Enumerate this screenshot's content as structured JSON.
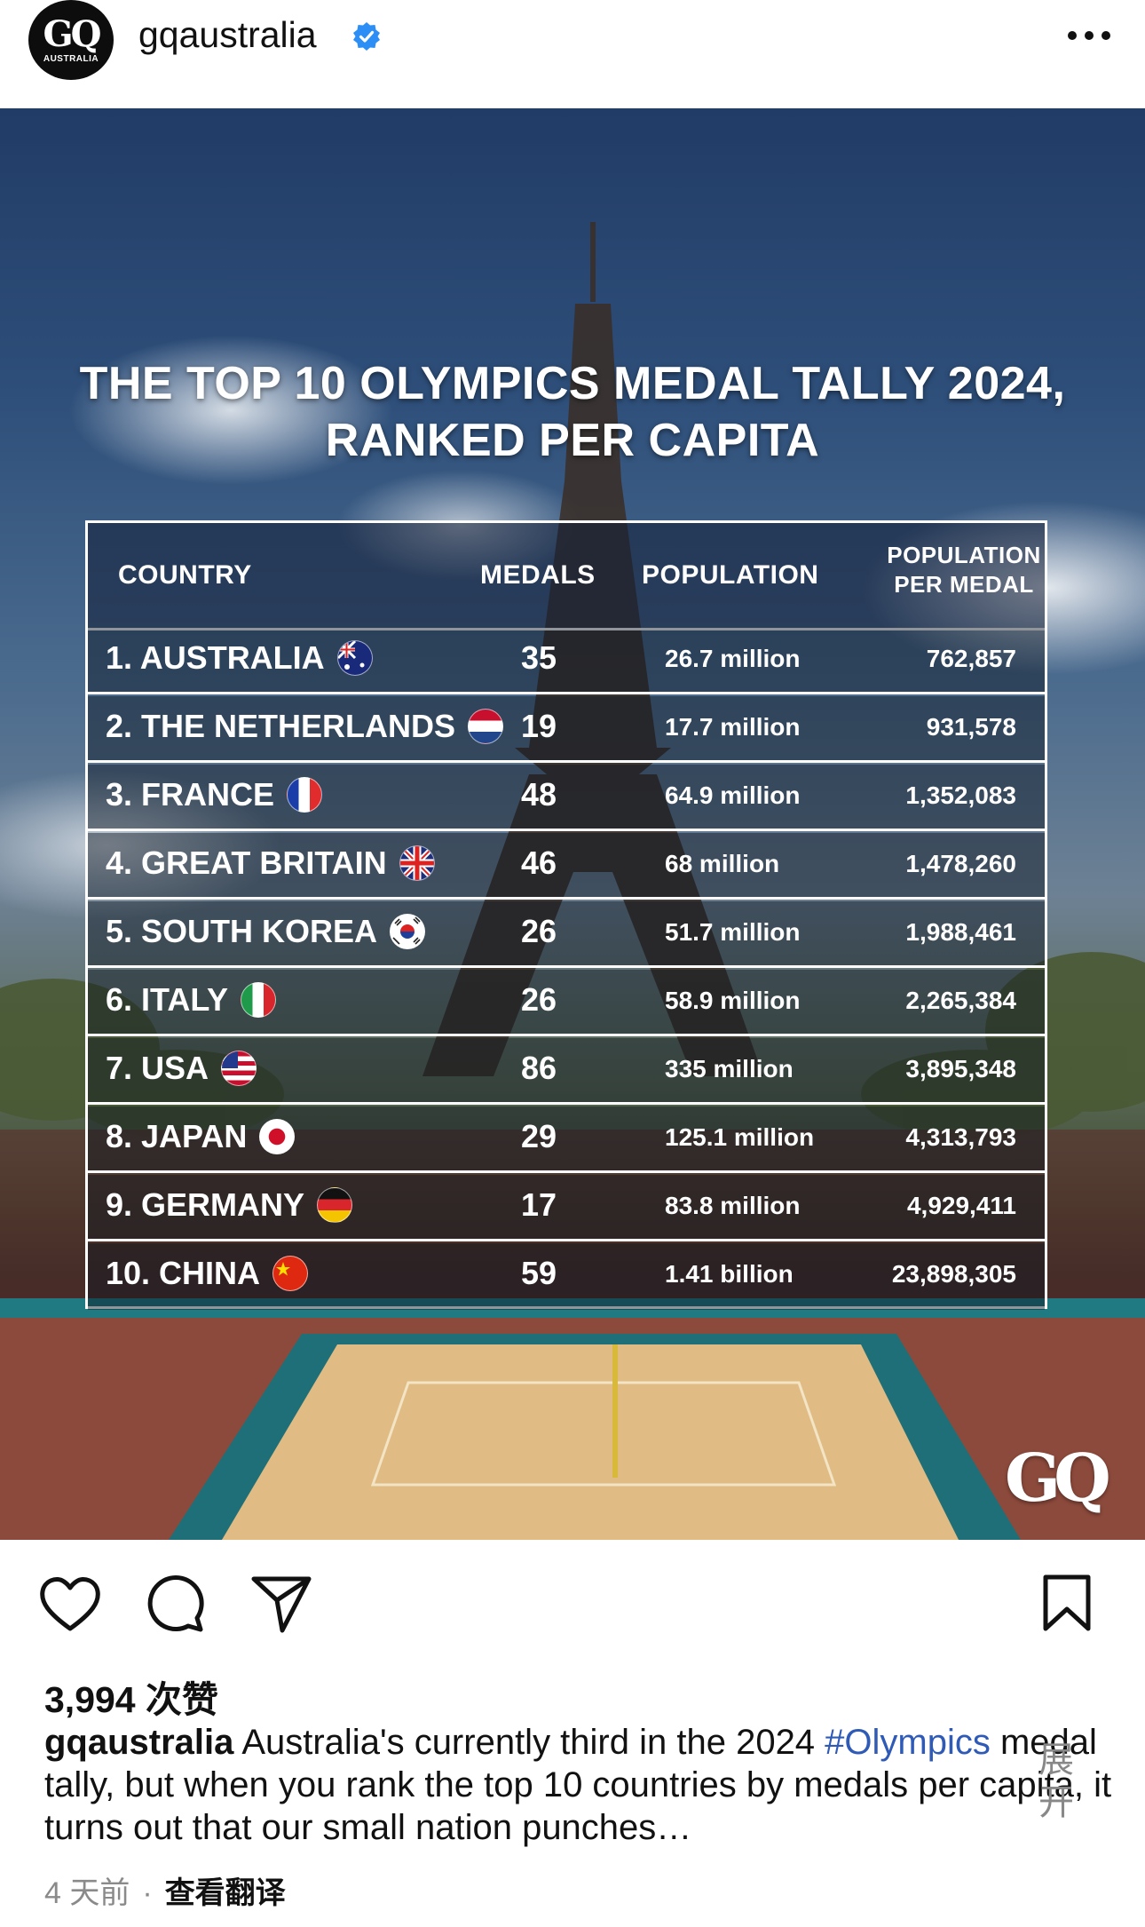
{
  "header": {
    "avatar_text": "GQ",
    "avatar_subtext": "AUSTRALIA",
    "username": "gqaustralia"
  },
  "post": {
    "title_line1": "THE TOP 10 OLYMPICS MEDAL TALLY 2024,",
    "title_line2": "RANKED PER CAPITA",
    "watermark": "GQ",
    "table": {
      "headers": {
        "country": "COUNTRY",
        "medals": "MEDALS",
        "population": "POPULATION",
        "ppm_line1": "POPULATION",
        "ppm_line2": "PER MEDAL"
      },
      "rows": [
        {
          "country": "1. AUSTRALIA",
          "flag": "australia-flag",
          "medals": "35",
          "population": "26.7 million",
          "ppm": "762,857"
        },
        {
          "country": "2. THE NETHERLANDS",
          "flag": "netherlands-flag",
          "medals": "19",
          "population": "17.7 million",
          "ppm": "931,578"
        },
        {
          "country": "3. FRANCE",
          "flag": "france-flag",
          "medals": "48",
          "population": "64.9 million",
          "ppm": "1,352,083"
        },
        {
          "country": "4. GREAT BRITAIN",
          "flag": "uk-flag",
          "medals": "46",
          "population": "68 million",
          "ppm": "1,478,260"
        },
        {
          "country": "5. SOUTH KOREA",
          "flag": "south-korea-flag",
          "medals": "26",
          "population": "51.7 million",
          "ppm": "1,988,461"
        },
        {
          "country": "6. ITALY",
          "flag": "italy-flag",
          "medals": "26",
          "population": "58.9 million",
          "ppm": "2,265,384"
        },
        {
          "country": "7. USA",
          "flag": "usa-flag",
          "medals": "86",
          "population": "335 million",
          "ppm": "3,895,348"
        },
        {
          "country": "8. JAPAN",
          "flag": "japan-flag",
          "medals": "29",
          "population": "125.1 million",
          "ppm": "4,313,793"
        },
        {
          "country": "9. GERMANY",
          "flag": "germany-flag",
          "medals": "17",
          "population": "83.8 million",
          "ppm": "4,929,411"
        },
        {
          "country": "10. CHINA",
          "flag": "china-flag",
          "medals": "59",
          "population": "1.41 billion",
          "ppm": "23,898,305"
        }
      ]
    }
  },
  "actions": {
    "icons": [
      "heart-icon",
      "comment-icon",
      "share-icon",
      "bookmark-icon"
    ]
  },
  "likes": "3,994 次赞",
  "caption": {
    "username": "gqaustralia",
    "text_before_tag": " Australia's currently third in the 2024 ",
    "hashtag": "#Olympics",
    "text_after_tag": " medal tally, but when you rank the top 10 countries by medals per capita, it turns out that our small nation punches…",
    "more": " 展开"
  },
  "meta": {
    "time": "4 天前",
    "separator": "·",
    "translate": "查看翻译"
  },
  "colors": {
    "link": "#2f5bb7",
    "verified": "#2d8ef5",
    "muted": "#8a8a8a"
  }
}
